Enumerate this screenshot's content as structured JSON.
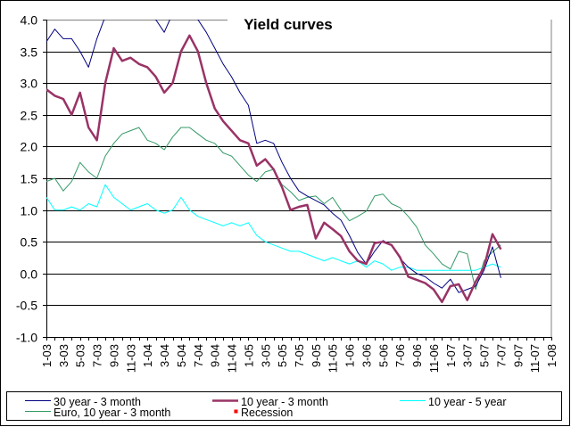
{
  "chart_data": {
    "type": "line",
    "title": "Yield curves",
    "xlabel": "",
    "ylabel": "",
    "ylim": [
      -1.0,
      4.0
    ],
    "y_ticks": [
      "4.0",
      "3.5",
      "3.0",
      "2.5",
      "2.0",
      "1.5",
      "1.0",
      "0.5",
      "0.0",
      "-0.5",
      "-1.0"
    ],
    "x_tick_labels": [
      "1-03",
      "3-03",
      "5-03",
      "7-03",
      "9-03",
      "11-03",
      "1-04",
      "3-04",
      "5-04",
      "7-04",
      "9-04",
      "11-04",
      "1-05",
      "3-05",
      "5-05",
      "7-05",
      "9-05",
      "11-05",
      "1-06",
      "3-06",
      "5-06",
      "7-06",
      "9-06",
      "11-06",
      "1-07",
      "3-07",
      "5-07",
      "7-07",
      "9-07",
      "11-07",
      "1-08"
    ],
    "x_start": "2003-01",
    "x_end": "2008-01",
    "grid": true,
    "legend_position": "bottom",
    "series": [
      {
        "name": "30 year - 3 month",
        "color": "#000080",
        "values": [
          3.65,
          3.85,
          3.7,
          3.7,
          3.5,
          3.25,
          3.7,
          4.05,
          4.2,
          4.3,
          4.3,
          4.2,
          4.05,
          4.0,
          3.8,
          4.1,
          4.3,
          4.2,
          4.0,
          3.8,
          3.55,
          3.3,
          3.1,
          2.85,
          2.65,
          2.05,
          2.1,
          2.05,
          1.75,
          1.5,
          1.3,
          1.22,
          1.15,
          1.08,
          0.95,
          0.84,
          0.6,
          0.33,
          0.15,
          0.35,
          0.52,
          0.45,
          0.24,
          0.1,
          0.0,
          -0.05,
          -0.15,
          -0.23,
          -0.09,
          -0.3,
          -0.25,
          -0.2,
          0.05,
          0.42,
          -0.07
        ]
      },
      {
        "name": "10 year - 3 month",
        "color": "#993366",
        "values": [
          2.9,
          2.8,
          2.75,
          2.5,
          2.85,
          2.3,
          2.1,
          3.0,
          3.55,
          3.35,
          3.4,
          3.3,
          3.25,
          3.1,
          2.85,
          3.0,
          3.5,
          3.75,
          3.5,
          3.0,
          2.6,
          2.4,
          2.25,
          2.1,
          2.05,
          1.7,
          1.8,
          1.64,
          1.36,
          1.0,
          1.05,
          1.08,
          0.55,
          0.8,
          0.7,
          0.59,
          0.35,
          0.2,
          0.15,
          0.48,
          0.5,
          0.45,
          0.26,
          -0.05,
          -0.1,
          -0.15,
          -0.25,
          -0.45,
          -0.2,
          -0.17,
          -0.42,
          -0.13,
          0.1,
          0.62,
          0.38
        ]
      },
      {
        "name": "10 year - 5 year",
        "color": "#00FFFF",
        "values": [
          1.2,
          1.0,
          1.0,
          1.05,
          1.0,
          1.1,
          1.05,
          1.4,
          1.2,
          1.1,
          1.0,
          1.05,
          1.1,
          1.0,
          0.95,
          1.0,
          1.2,
          1.0,
          0.9,
          0.85,
          0.8,
          0.75,
          0.8,
          0.75,
          0.8,
          0.6,
          0.5,
          0.45,
          0.4,
          0.35,
          0.35,
          0.3,
          0.25,
          0.2,
          0.25,
          0.2,
          0.15,
          0.2,
          0.1,
          0.2,
          0.15,
          0.05,
          0.1,
          0.1,
          0.05,
          0.05,
          0.05,
          0.05,
          0.05,
          0.05,
          0.05,
          0.05,
          0.1,
          0.15,
          0.1
        ]
      },
      {
        "name": "Euro, 10 year - 3 month",
        "color": "#339966",
        "values": [
          1.45,
          1.5,
          1.3,
          1.45,
          1.75,
          1.6,
          1.5,
          1.85,
          2.05,
          2.2,
          2.25,
          2.3,
          2.1,
          2.05,
          1.95,
          2.15,
          2.3,
          2.3,
          2.2,
          2.1,
          2.05,
          1.9,
          1.85,
          1.7,
          1.55,
          1.45,
          1.6,
          1.64,
          1.4,
          1.29,
          1.15,
          1.2,
          1.22,
          1.1,
          1.2,
          1.0,
          0.83,
          0.9,
          0.98,
          1.22,
          1.25,
          1.1,
          1.04,
          0.9,
          0.73,
          0.45,
          0.31,
          0.15,
          0.07,
          0.35,
          0.31,
          -0.25,
          0.2,
          0.34,
          0.45
        ]
      },
      {
        "name": "Recession",
        "color": "#FF0000",
        "marker": "square",
        "values": []
      }
    ]
  }
}
